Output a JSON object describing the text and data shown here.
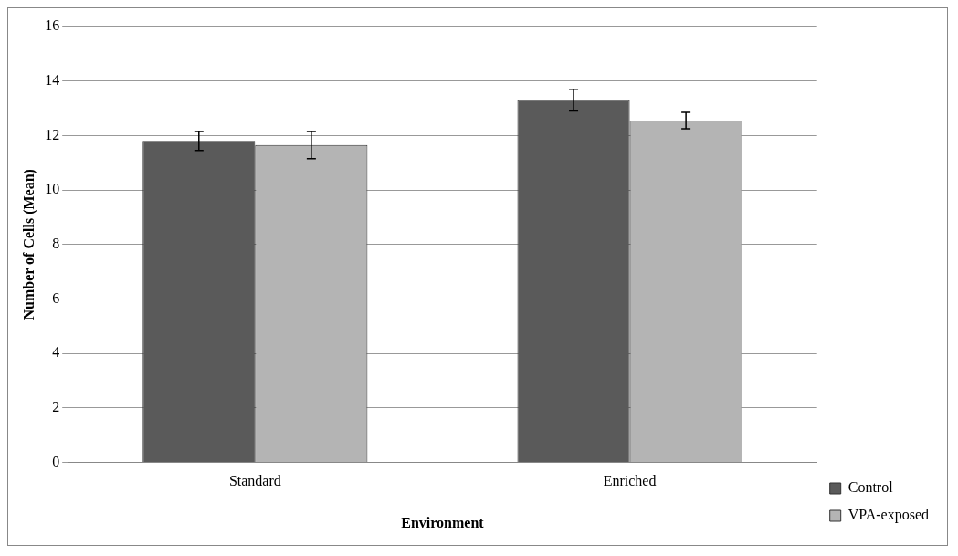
{
  "chart_data": {
    "type": "bar",
    "xlabel": "Environment",
    "ylabel": "Number of Cells (Mean)",
    "categories": [
      "Standard",
      "Enriched"
    ],
    "series": [
      {
        "name": "Control",
        "color": "#5a5a5a",
        "values": [
          11.8,
          13.3
        ],
        "errors": [
          0.35,
          0.4
        ]
      },
      {
        "name": "VPA-exposed",
        "color": "#b4b4b4",
        "values": [
          11.65,
          12.55
        ],
        "errors": [
          0.5,
          0.3
        ]
      }
    ],
    "ylim": [
      0,
      16
    ],
    "yticks": [
      0,
      2,
      4,
      6,
      8,
      10,
      12,
      14,
      16
    ],
    "grid": "y",
    "legend": "right"
  }
}
